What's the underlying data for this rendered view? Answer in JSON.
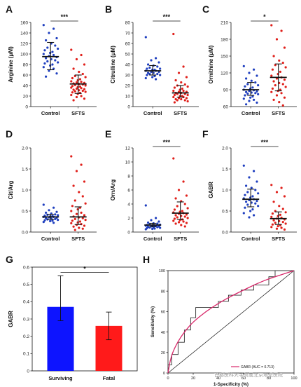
{
  "colors": {
    "control": "#1f3fbf",
    "sfts": "#e0201b",
    "surviving": "#0d14ff",
    "fatal": "#ff1a1a",
    "roc": "#d8286a",
    "step": "#333333"
  },
  "watermark": "首都医科大学附属北京地坛医院",
  "chart_data": [
    {
      "panel": "A",
      "type": "scatter",
      "ylabel": "Arginine (μM)",
      "ylim": [
        0,
        160
      ],
      "yticks": [
        0,
        20,
        40,
        60,
        80,
        100,
        120,
        140,
        160
      ],
      "categories": [
        "Control",
        "SFTS"
      ],
      "significance": "***",
      "groups": [
        {
          "name": "Control",
          "mean": 95,
          "sd_low": 70,
          "sd_high": 122,
          "values": [
            155,
            148,
            140,
            130,
            126,
            120,
            116,
            112,
            110,
            107,
            104,
            102,
            100,
            98,
            96,
            94,
            92,
            90,
            88,
            86,
            84,
            82,
            80,
            78,
            75,
            72,
            68,
            63,
            57
          ]
        },
        {
          "name": "SFTS",
          "mean": 43,
          "sd_low": 25,
          "sd_high": 60,
          "values": [
            108,
            98,
            90,
            80,
            72,
            66,
            62,
            58,
            56,
            54,
            52,
            50,
            48,
            47,
            46,
            45,
            44,
            43,
            42,
            41,
            40,
            39,
            38,
            37,
            36,
            35,
            34,
            33,
            32,
            31,
            30,
            29,
            28,
            27,
            26,
            24,
            22,
            20,
            18,
            15,
            12
          ]
        }
      ]
    },
    {
      "panel": "B",
      "type": "scatter",
      "ylabel": "Citrulline (μM)",
      "ylim": [
        0,
        80
      ],
      "yticks": [
        0,
        10,
        20,
        30,
        40,
        50,
        60,
        70,
        80
      ],
      "categories": [
        "Control",
        "SFTS"
      ],
      "significance": "***",
      "groups": [
        {
          "name": "Control",
          "mean": 34,
          "sd_low": 30,
          "sd_high": 39,
          "values": [
            66,
            46,
            44,
            42,
            40,
            39,
            38,
            37,
            36,
            36,
            35,
            35,
            34,
            34,
            33,
            33,
            32,
            32,
            31,
            31,
            30,
            30,
            29,
            28,
            27,
            26
          ]
        },
        {
          "name": "SFTS",
          "mean": 13,
          "sd_low": 9,
          "sd_high": 20,
          "values": [
            69,
            38,
            32,
            28,
            25,
            23,
            21,
            20,
            19,
            18,
            17,
            16,
            15,
            15,
            14,
            14,
            13,
            13,
            12,
            12,
            11,
            11,
            10,
            10,
            9,
            9,
            8,
            8,
            7,
            7,
            6,
            6,
            5,
            4
          ]
        }
      ]
    },
    {
      "panel": "C",
      "type": "scatter",
      "ylabel": "Ornithine (μM)",
      "ylim": [
        60,
        210
      ],
      "yticks": [
        60,
        90,
        120,
        150,
        180,
        210
      ],
      "categories": [
        "Control",
        "SFTS"
      ],
      "significance": "*",
      "groups": [
        {
          "name": "Control",
          "mean": 90,
          "sd_low": 80,
          "sd_high": 103,
          "values": [
            132,
            126,
            120,
            115,
            110,
            106,
            103,
            100,
            98,
            96,
            94,
            92,
            90,
            89,
            88,
            87,
            86,
            85,
            84,
            83,
            82,
            80,
            78,
            76,
            74,
            72,
            70,
            67,
            64
          ]
        },
        {
          "name": "SFTS",
          "mean": 112,
          "sd_low": 88,
          "sd_high": 136,
          "values": [
            205,
            195,
            180,
            165,
            150,
            142,
            138,
            134,
            130,
            126,
            122,
            118,
            115,
            112,
            110,
            108,
            105,
            102,
            100,
            98,
            95,
            92,
            90,
            88,
            86,
            84,
            80,
            76,
            72,
            68,
            62
          ]
        }
      ]
    },
    {
      "panel": "D",
      "type": "scatter",
      "ylabel": "Cit/Arg",
      "ylim": [
        0,
        2.0
      ],
      "yticks": [
        0.0,
        0.5,
        1.0,
        1.5,
        2.0
      ],
      "categories": [
        "Control",
        "SFTS"
      ],
      "significance": "",
      "groups": [
        {
          "name": "Control",
          "mean": 0.36,
          "sd_low": 0.3,
          "sd_high": 0.42,
          "values": [
            0.65,
            0.58,
            0.52,
            0.48,
            0.46,
            0.44,
            0.42,
            0.41,
            0.4,
            0.39,
            0.38,
            0.37,
            0.36,
            0.36,
            0.35,
            0.34,
            0.33,
            0.32,
            0.31,
            0.3,
            0.29,
            0.28,
            0.27,
            0.26,
            0.24,
            0.22
          ]
        },
        {
          "name": "SFTS",
          "mean": 0.36,
          "sd_low": 0.18,
          "sd_high": 0.6,
          "values": [
            1.8,
            1.6,
            1.45,
            1.2,
            1.1,
            0.95,
            0.85,
            0.75,
            0.68,
            0.62,
            0.58,
            0.54,
            0.5,
            0.46,
            0.43,
            0.4,
            0.37,
            0.35,
            0.33,
            0.31,
            0.29,
            0.27,
            0.25,
            0.23,
            0.21,
            0.19,
            0.17,
            0.15,
            0.13,
            0.1,
            0.08,
            0.05
          ]
        }
      ]
    },
    {
      "panel": "E",
      "type": "scatter",
      "ylabel": "Orn/Arg",
      "ylim": [
        0,
        12
      ],
      "yticks": [
        0,
        2,
        4,
        6,
        8,
        10,
        12
      ],
      "categories": [
        "Control",
        "SFTS"
      ],
      "significance": "***",
      "groups": [
        {
          "name": "Control",
          "mean": 1.0,
          "sd_low": 0.75,
          "sd_high": 1.25,
          "values": [
            3.8,
            2.0,
            1.7,
            1.5,
            1.35,
            1.25,
            1.2,
            1.1,
            1.05,
            1.0,
            0.95,
            0.9,
            0.9,
            0.85,
            0.8,
            0.8,
            0.75,
            0.7,
            0.7,
            0.65,
            0.6,
            0.55,
            0.5,
            0.45,
            0.4
          ]
        },
        {
          "name": "SFTS",
          "mean": 2.7,
          "sd_low": 1.8,
          "sd_high": 4.3,
          "values": [
            10.5,
            7.2,
            6.0,
            5.2,
            4.8,
            4.4,
            4.0,
            3.7,
            3.4,
            3.2,
            3.0,
            2.9,
            2.8,
            2.7,
            2.6,
            2.5,
            2.4,
            2.3,
            2.2,
            2.1,
            2.0,
            1.9,
            1.8,
            1.7,
            1.6,
            1.5,
            1.4,
            1.3,
            1.2,
            1.0,
            0.8
          ]
        }
      ]
    },
    {
      "panel": "F",
      "type": "scatter",
      "ylabel": "GABR",
      "ylim": [
        0,
        2.0
      ],
      "yticks": [
        0.0,
        0.5,
        1.0,
        1.5,
        2.0
      ],
      "categories": [
        "Control",
        "SFTS"
      ],
      "significance": "***",
      "groups": [
        {
          "name": "Control",
          "mean": 0.78,
          "sd_low": 0.6,
          "sd_high": 1.02,
          "values": [
            1.58,
            1.45,
            1.3,
            1.2,
            1.1,
            1.05,
            1.0,
            0.95,
            0.92,
            0.88,
            0.85,
            0.82,
            0.8,
            0.78,
            0.76,
            0.74,
            0.72,
            0.7,
            0.68,
            0.65,
            0.62,
            0.58,
            0.54,
            0.5,
            0.45,
            0.4,
            0.35
          ]
        },
        {
          "name": "SFTS",
          "mean": 0.32,
          "sd_low": 0.18,
          "sd_high": 0.48,
          "values": [
            1.12,
            1.05,
            0.95,
            0.85,
            0.72,
            0.62,
            0.55,
            0.5,
            0.47,
            0.44,
            0.41,
            0.38,
            0.36,
            0.34,
            0.32,
            0.3,
            0.28,
            0.26,
            0.24,
            0.22,
            0.2,
            0.18,
            0.16,
            0.14,
            0.12,
            0.1,
            0.08,
            0.06
          ]
        }
      ]
    },
    {
      "panel": "G",
      "type": "bar",
      "ylabel": "GABR",
      "ylim": [
        0,
        0.6
      ],
      "yticks": [
        0,
        0.1,
        0.2,
        0.3,
        0.4,
        0.5,
        0.6
      ],
      "categories": [
        "Surviving",
        "Fatal"
      ],
      "values": [
        0.37,
        0.26
      ],
      "error_low": [
        0.29,
        0.18
      ],
      "error_high": [
        0.55,
        0.34
      ],
      "significance": "*"
    },
    {
      "panel": "H",
      "type": "line",
      "xlabel": "1-Specificity (%)",
      "ylabel": "Sensitivity (%)",
      "xlim": [
        0,
        100
      ],
      "ylim": [
        0,
        100
      ],
      "xticks": [
        0,
        20,
        40,
        60,
        80,
        100
      ],
      "yticks": [
        0,
        20,
        40,
        60,
        80,
        100
      ],
      "legend": "GABR  (AUC = 0.713)",
      "roc_steps": [
        [
          0,
          0
        ],
        [
          0,
          8
        ],
        [
          3,
          8
        ],
        [
          3,
          18
        ],
        [
          8,
          18
        ],
        [
          8,
          30
        ],
        [
          13,
          30
        ],
        [
          13,
          42
        ],
        [
          18,
          42
        ],
        [
          18,
          54
        ],
        [
          22,
          54
        ],
        [
          22,
          64
        ],
        [
          40,
          64
        ],
        [
          40,
          70
        ],
        [
          48,
          70
        ],
        [
          48,
          76
        ],
        [
          58,
          76
        ],
        [
          58,
          81
        ],
        [
          68,
          81
        ],
        [
          68,
          86
        ],
        [
          80,
          86
        ],
        [
          80,
          94
        ],
        [
          85,
          94
        ],
        [
          85,
          100
        ],
        [
          100,
          100
        ]
      ],
      "fit_curve": [
        [
          0,
          0
        ],
        [
          2,
          14
        ],
        [
          5,
          24
        ],
        [
          10,
          35
        ],
        [
          15,
          43
        ],
        [
          20,
          50
        ],
        [
          30,
          60
        ],
        [
          40,
          68
        ],
        [
          50,
          75
        ],
        [
          60,
          81
        ],
        [
          70,
          87
        ],
        [
          80,
          92
        ],
        [
          90,
          96
        ],
        [
          100,
          100
        ]
      ]
    }
  ]
}
